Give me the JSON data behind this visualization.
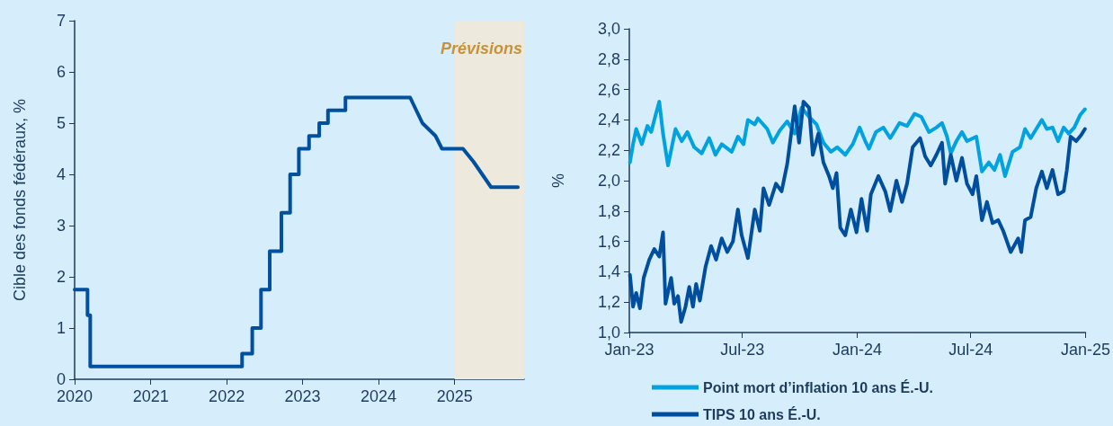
{
  "chart_data": [
    {
      "type": "line",
      "ylabel": "Cible des fonds fédéraux, %",
      "grid": false,
      "marker": "none",
      "line_style": "solid",
      "legend": false,
      "x": [
        "2020-01-01",
        "2020-03-03",
        "2020-03-03",
        "2020-03-16",
        "2020-03-16",
        "2022-03-16",
        "2022-03-16",
        "2022-05-04",
        "2022-05-04",
        "2022-06-15",
        "2022-06-15",
        "2022-07-27",
        "2022-07-27",
        "2022-09-21",
        "2022-09-21",
        "2022-11-02",
        "2022-11-02",
        "2022-12-14",
        "2022-12-14",
        "2023-02-01",
        "2023-02-01",
        "2023-03-22",
        "2023-03-22",
        "2023-05-03",
        "2023-05-03",
        "2023-07-26",
        "2023-07-26",
        "2024-06-01",
        "2024-07-30",
        "2024-10-01",
        "2024-11-01",
        "2025-02-10",
        "2025-04-01",
        "2025-06-25",
        "2025-11-01"
      ],
      "series": [
        {
          "color": "#0050a0",
          "values": [
            1.75,
            1.75,
            1.25,
            1.25,
            0.25,
            0.25,
            0.5,
            0.5,
            1.0,
            1.0,
            1.75,
            1.75,
            2.5,
            2.5,
            3.25,
            3.25,
            4.0,
            4.0,
            4.5,
            4.5,
            4.75,
            4.75,
            5.0,
            5.0,
            5.25,
            5.25,
            5.5,
            5.5,
            5.0,
            4.75,
            4.5,
            4.5,
            4.25,
            3.75,
            3.75
          ]
        }
      ],
      "xlim": [
        "2020-01-01",
        "2025-12-01"
      ],
      "xticks": [
        "2020",
        "2021",
        "2022",
        "2023",
        "2024",
        "2025"
      ],
      "ylim": [
        0,
        7
      ],
      "yticks": [
        0,
        1,
        2,
        3,
        4,
        5,
        6,
        7
      ],
      "bands": [
        {
          "axis": "x",
          "from": "2025-01-01",
          "to": "2025-12-01",
          "label": "Prévisions",
          "color": "#ede9dd"
        }
      ]
    },
    {
      "type": "line",
      "ylabel": "%",
      "grid": false,
      "marker": "none",
      "line_style": "solid",
      "legend": "bottom",
      "series": [
        {
          "name": "Point mort d’inflation 10 ans É.-U.",
          "color": "#00a3e0",
          "x": [
            "2023-01-02",
            "2023-01-07",
            "2023-01-12",
            "2023-01-21",
            "2023-01-30",
            "2023-02-05",
            "2023-02-12",
            "2023-02-18",
            "2023-02-24",
            "2023-03-04",
            "2023-03-16",
            "2023-03-26",
            "2023-04-04",
            "2023-04-15",
            "2023-04-27",
            "2023-05-09",
            "2023-05-19",
            "2023-05-29",
            "2023-06-14",
            "2023-06-24",
            "2023-07-03",
            "2023-07-10",
            "2023-07-21",
            "2023-07-26",
            "2023-08-10",
            "2023-08-19",
            "2023-08-30",
            "2023-09-11",
            "2023-09-23",
            "2023-10-04",
            "2023-10-16",
            "2023-10-28",
            "2023-11-08",
            "2023-11-20",
            "2023-11-30",
            "2023-12-13",
            "2023-12-25",
            "2024-01-05",
            "2024-01-14",
            "2024-01-20",
            "2024-01-31",
            "2024-02-12",
            "2024-02-23",
            "2024-03-09",
            "2024-03-21",
            "2024-04-02",
            "2024-04-13",
            "2024-04-25",
            "2024-05-07",
            "2024-05-16",
            "2024-05-24",
            "2024-05-30",
            "2024-06-08",
            "2024-06-17",
            "2024-06-25",
            "2024-07-10",
            "2024-07-19",
            "2024-07-30",
            "2024-08-08",
            "2024-08-17",
            "2024-08-25",
            "2024-09-06",
            "2024-09-18",
            "2024-09-26",
            "2024-10-05",
            "2024-10-14",
            "2024-10-23",
            "2024-10-31",
            "2024-11-09",
            "2024-11-18",
            "2024-11-27",
            "2024-12-05",
            "2024-12-14",
            "2024-12-23",
            "2024-12-31"
          ],
          "values": [
            2.12,
            2.24,
            2.34,
            2.24,
            2.36,
            2.32,
            2.43,
            2.52,
            2.31,
            2.1,
            2.34,
            2.26,
            2.32,
            2.22,
            2.18,
            2.28,
            2.17,
            2.24,
            2.19,
            2.29,
            2.24,
            2.4,
            2.37,
            2.41,
            2.34,
            2.25,
            2.33,
            2.39,
            2.31,
            2.48,
            2.42,
            2.37,
            2.25,
            2.19,
            2.22,
            2.17,
            2.24,
            2.35,
            2.26,
            2.21,
            2.32,
            2.35,
            2.28,
            2.38,
            2.36,
            2.44,
            2.42,
            2.32,
            2.35,
            2.38,
            2.29,
            2.18,
            2.26,
            2.32,
            2.26,
            2.29,
            2.06,
            2.12,
            2.07,
            2.17,
            2.03,
            2.19,
            2.22,
            2.34,
            2.28,
            2.34,
            2.4,
            2.34,
            2.35,
            2.26,
            2.35,
            2.31,
            2.35,
            2.43,
            2.47
          ]
        },
        {
          "name": "TIPS 10 ans É.-U.",
          "color": "#004f9f",
          "x": [
            "2023-01-02",
            "2023-01-07",
            "2023-01-12",
            "2023-01-18",
            "2023-01-24",
            "2023-02-02",
            "2023-02-10",
            "2023-02-18",
            "2023-02-24",
            "2023-02-28",
            "2023-03-09",
            "2023-03-14",
            "2023-03-20",
            "2023-03-25",
            "2023-04-01",
            "2023-04-07",
            "2023-04-13",
            "2023-04-18",
            "2023-04-24",
            "2023-05-03",
            "2023-05-12",
            "2023-05-20",
            "2023-05-29",
            "2023-06-07",
            "2023-06-16",
            "2023-06-24",
            "2023-06-30",
            "2023-07-10",
            "2023-07-21",
            "2023-07-29",
            "2023-08-04",
            "2023-08-13",
            "2023-08-24",
            "2023-09-02",
            "2023-09-11",
            "2023-09-23",
            "2023-09-30",
            "2023-10-07",
            "2023-10-16",
            "2023-10-22",
            "2023-10-31",
            "2023-11-08",
            "2023-11-17",
            "2023-11-23",
            "2023-11-29",
            "2023-12-05",
            "2023-12-13",
            "2023-12-22",
            "2023-12-31",
            "2024-01-08",
            "2024-01-17",
            "2024-01-23",
            "2024-02-04",
            "2024-02-15",
            "2024-02-23",
            "2024-03-04",
            "2024-03-13",
            "2024-03-21",
            "2024-03-30",
            "2024-04-11",
            "2024-04-19",
            "2024-04-28",
            "2024-05-07",
            "2024-05-16",
            "2024-05-21",
            "2024-05-30",
            "2024-06-08",
            "2024-06-17",
            "2024-06-25",
            "2024-07-04",
            "2024-07-10",
            "2024-07-19",
            "2024-07-27",
            "2024-08-05",
            "2024-08-14",
            "2024-08-22",
            "2024-09-03",
            "2024-09-15",
            "2024-09-20",
            "2024-09-26",
            "2024-10-05",
            "2024-10-14",
            "2024-10-23",
            "2024-10-31",
            "2024-11-09",
            "2024-11-18",
            "2024-11-27",
            "2024-12-02",
            "2024-12-08",
            "2024-12-17",
            "2024-12-25",
            "2024-12-31"
          ],
          "values": [
            1.38,
            1.17,
            1.26,
            1.16,
            1.36,
            1.48,
            1.55,
            1.5,
            1.66,
            1.19,
            1.36,
            1.19,
            1.24,
            1.07,
            1.17,
            1.3,
            1.17,
            1.32,
            1.21,
            1.43,
            1.57,
            1.48,
            1.62,
            1.53,
            1.6,
            1.81,
            1.64,
            1.49,
            1.81,
            1.67,
            1.95,
            1.84,
            1.98,
            1.93,
            2.11,
            2.49,
            2.25,
            2.52,
            2.48,
            2.17,
            2.31,
            2.12,
            2.03,
            1.95,
            2.05,
            1.69,
            1.64,
            1.81,
            1.66,
            1.88,
            1.67,
            1.91,
            2.03,
            1.93,
            1.8,
            2.0,
            1.86,
            1.98,
            2.22,
            2.28,
            2.16,
            2.1,
            2.17,
            2.25,
            1.98,
            2.17,
            2.0,
            2.15,
            1.98,
            1.91,
            2.03,
            1.74,
            1.86,
            1.72,
            1.74,
            1.67,
            1.53,
            1.62,
            1.53,
            1.74,
            1.76,
            1.95,
            2.06,
            1.95,
            2.07,
            1.91,
            1.93,
            2.07,
            2.29,
            2.26,
            2.3,
            2.34
          ]
        }
      ],
      "xlim": [
        "2023-01-01",
        "2025-01-01"
      ],
      "xticks": [
        {
          "value": "2023-01-01",
          "label": "Jan-23"
        },
        {
          "value": "2023-07-01",
          "label": "Jul-23"
        },
        {
          "value": "2024-01-01",
          "label": "Jan-24"
        },
        {
          "value": "2024-07-01",
          "label": "Jul-24"
        },
        {
          "value": "2025-01-01",
          "label": "Jan-25"
        }
      ],
      "ylim": [
        1.0,
        3.0
      ],
      "yticks": [
        {
          "value": 1.0,
          "label": "1,0"
        },
        {
          "value": 1.2,
          "label": "1,2"
        },
        {
          "value": 1.4,
          "label": "1,4"
        },
        {
          "value": 1.6,
          "label": "1,6"
        },
        {
          "value": 1.8,
          "label": "1,8"
        },
        {
          "value": 2.0,
          "label": "2,0"
        },
        {
          "value": 2.2,
          "label": "2,2"
        },
        {
          "value": 2.4,
          "label": "2,4"
        },
        {
          "value": 2.6,
          "label": "2,6"
        },
        {
          "value": 2.8,
          "label": "2,8"
        },
        {
          "value": 3.0,
          "label": "3,0"
        }
      ]
    }
  ]
}
